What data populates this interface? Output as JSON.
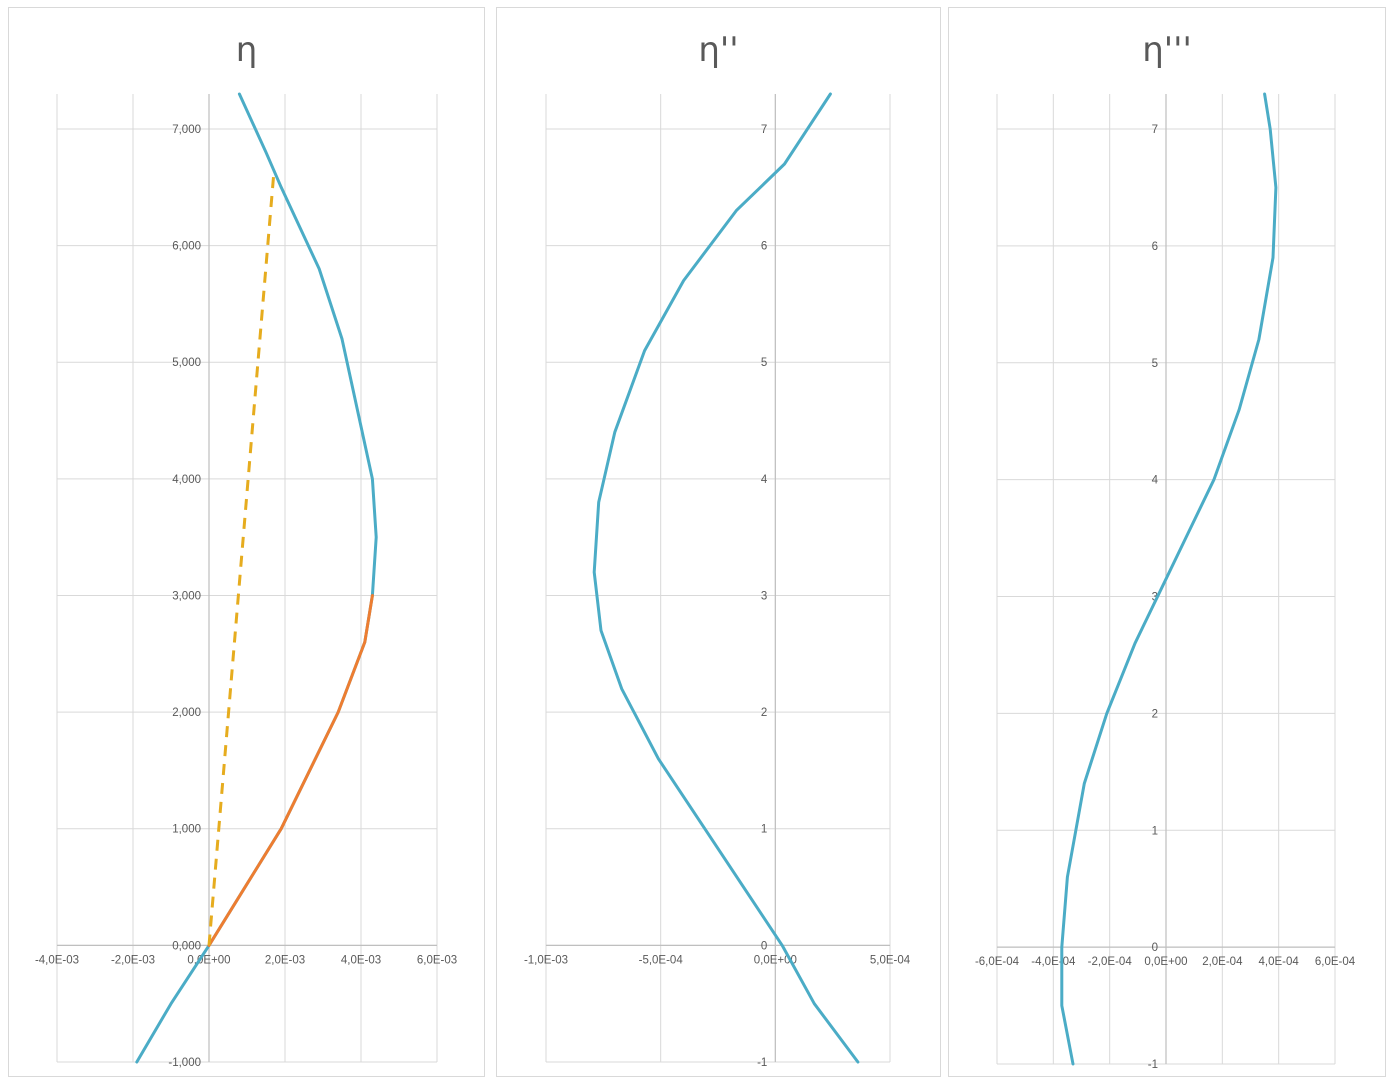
{
  "chart_data": [
    {
      "type": "line",
      "title": "η",
      "xlim": [
        -0.004,
        0.006
      ],
      "ylim": [
        -1,
        7.3
      ],
      "x_ticks": [
        "-4,0E-03",
        "-2,0E-03",
        "0,0E+00",
        "2,0E-03",
        "4,0E-03",
        "6,0E-03"
      ],
      "x_tick_values": [
        -0.004,
        -0.002,
        0,
        0.002,
        0.004,
        0.006
      ],
      "y_ticks": [
        "-1,000",
        "0,000",
        "1,000",
        "2,000",
        "3,000",
        "4,000",
        "5,000",
        "6,000",
        "7,000"
      ],
      "y_tick_values": [
        -1,
        0,
        1,
        2,
        3,
        4,
        5,
        6,
        7
      ],
      "grid": true,
      "series": [
        {
          "color": "#4BACC6",
          "style": "solid",
          "points": [
            [
              -0.0019,
              -1.0
            ],
            [
              -0.001,
              -0.5
            ],
            [
              0.0,
              0.0
            ],
            [
              0.0019,
              1.0
            ],
            [
              0.0034,
              2.0
            ],
            [
              0.0041,
              2.6
            ],
            [
              0.0043,
              3.0
            ],
            [
              0.0044,
              3.5
            ],
            [
              0.0043,
              4.0
            ],
            [
              0.0039,
              4.6
            ],
            [
              0.0035,
              5.2
            ],
            [
              0.0029,
              5.8
            ],
            [
              0.0019,
              6.5
            ],
            [
              0.0015,
              6.8
            ],
            [
              0.0008,
              7.3
            ]
          ]
        },
        {
          "color": "#ED7D31",
          "style": "solid",
          "points": [
            [
              0.0,
              0.0
            ],
            [
              0.0019,
              1.0
            ],
            [
              0.0034,
              2.0
            ],
            [
              0.0041,
              2.6
            ],
            [
              0.0043,
              3.0
            ]
          ]
        },
        {
          "color": "#E6AC1E",
          "style": "dashed",
          "points": [
            [
              0.0,
              0.0
            ],
            [
              0.0017,
              6.6
            ]
          ]
        }
      ]
    },
    {
      "type": "line",
      "title": "η''",
      "xlim": [
        -0.001,
        0.0005
      ],
      "ylim": [
        -1,
        7.3
      ],
      "x_ticks": [
        "-1,0E-03",
        "-5,0E-04",
        "0,0E+00",
        "5,0E-04"
      ],
      "x_tick_values": [
        -0.001,
        -0.0005,
        0,
        0.0005
      ],
      "y_ticks": [
        "-1",
        "0",
        "1",
        "2",
        "3",
        "4",
        "5",
        "6",
        "7"
      ],
      "y_tick_values": [
        -1,
        0,
        1,
        2,
        3,
        4,
        5,
        6,
        7
      ],
      "grid": true,
      "series": [
        {
          "color": "#4BACC6",
          "style": "solid",
          "points": [
            [
              0.00036,
              -1.0
            ],
            [
              0.00017,
              -0.5
            ],
            [
              3e-05,
              0.0
            ],
            [
              -0.00024,
              0.8
            ],
            [
              -0.00051,
              1.6
            ],
            [
              -0.00067,
              2.2
            ],
            [
              -0.00076,
              2.7
            ],
            [
              -0.00079,
              3.2
            ],
            [
              -0.00077,
              3.8
            ],
            [
              -0.0007,
              4.4
            ],
            [
              -0.00057,
              5.1
            ],
            [
              -0.0004,
              5.7
            ],
            [
              -0.00017,
              6.3
            ],
            [
              4e-05,
              6.7
            ],
            [
              0.00024,
              7.3
            ]
          ]
        }
      ]
    },
    {
      "type": "line",
      "title": "η'''",
      "xlim": [
        -0.0006,
        0.0006
      ],
      "ylim": [
        -1,
        7.3
      ],
      "x_ticks": [
        "-6,0E-04",
        "-4,0E-04",
        "-2,0E-04",
        "0,0E+00",
        "2,0E-04",
        "4,0E-04",
        "6,0E-04"
      ],
      "x_tick_values": [
        -0.0006,
        -0.0004,
        -0.0002,
        0,
        0.0002,
        0.0004,
        0.0006
      ],
      "y_ticks": [
        "-1",
        "0",
        "1",
        "2",
        "3",
        "4",
        "5",
        "6",
        "7"
      ],
      "y_tick_values": [
        -1,
        0,
        1,
        2,
        3,
        4,
        5,
        6,
        7
      ],
      "grid": true,
      "series": [
        {
          "color": "#4BACC6",
          "style": "solid",
          "points": [
            [
              -0.00033,
              -1.0
            ],
            [
              -0.00037,
              -0.5
            ],
            [
              -0.00037,
              0.0
            ],
            [
              -0.00035,
              0.6
            ],
            [
              -0.00029,
              1.4
            ],
            [
              -0.00021,
              2.0
            ],
            [
              -0.00011,
              2.6
            ],
            [
              -1e-05,
              3.1
            ],
            [
              7e-05,
              3.5
            ],
            [
              0.00017,
              4.0
            ],
            [
              0.00026,
              4.6
            ],
            [
              0.00033,
              5.2
            ],
            [
              0.00038,
              5.9
            ],
            [
              0.00039,
              6.5
            ],
            [
              0.00037,
              7.0
            ],
            [
              0.00035,
              7.3
            ]
          ]
        }
      ]
    }
  ]
}
